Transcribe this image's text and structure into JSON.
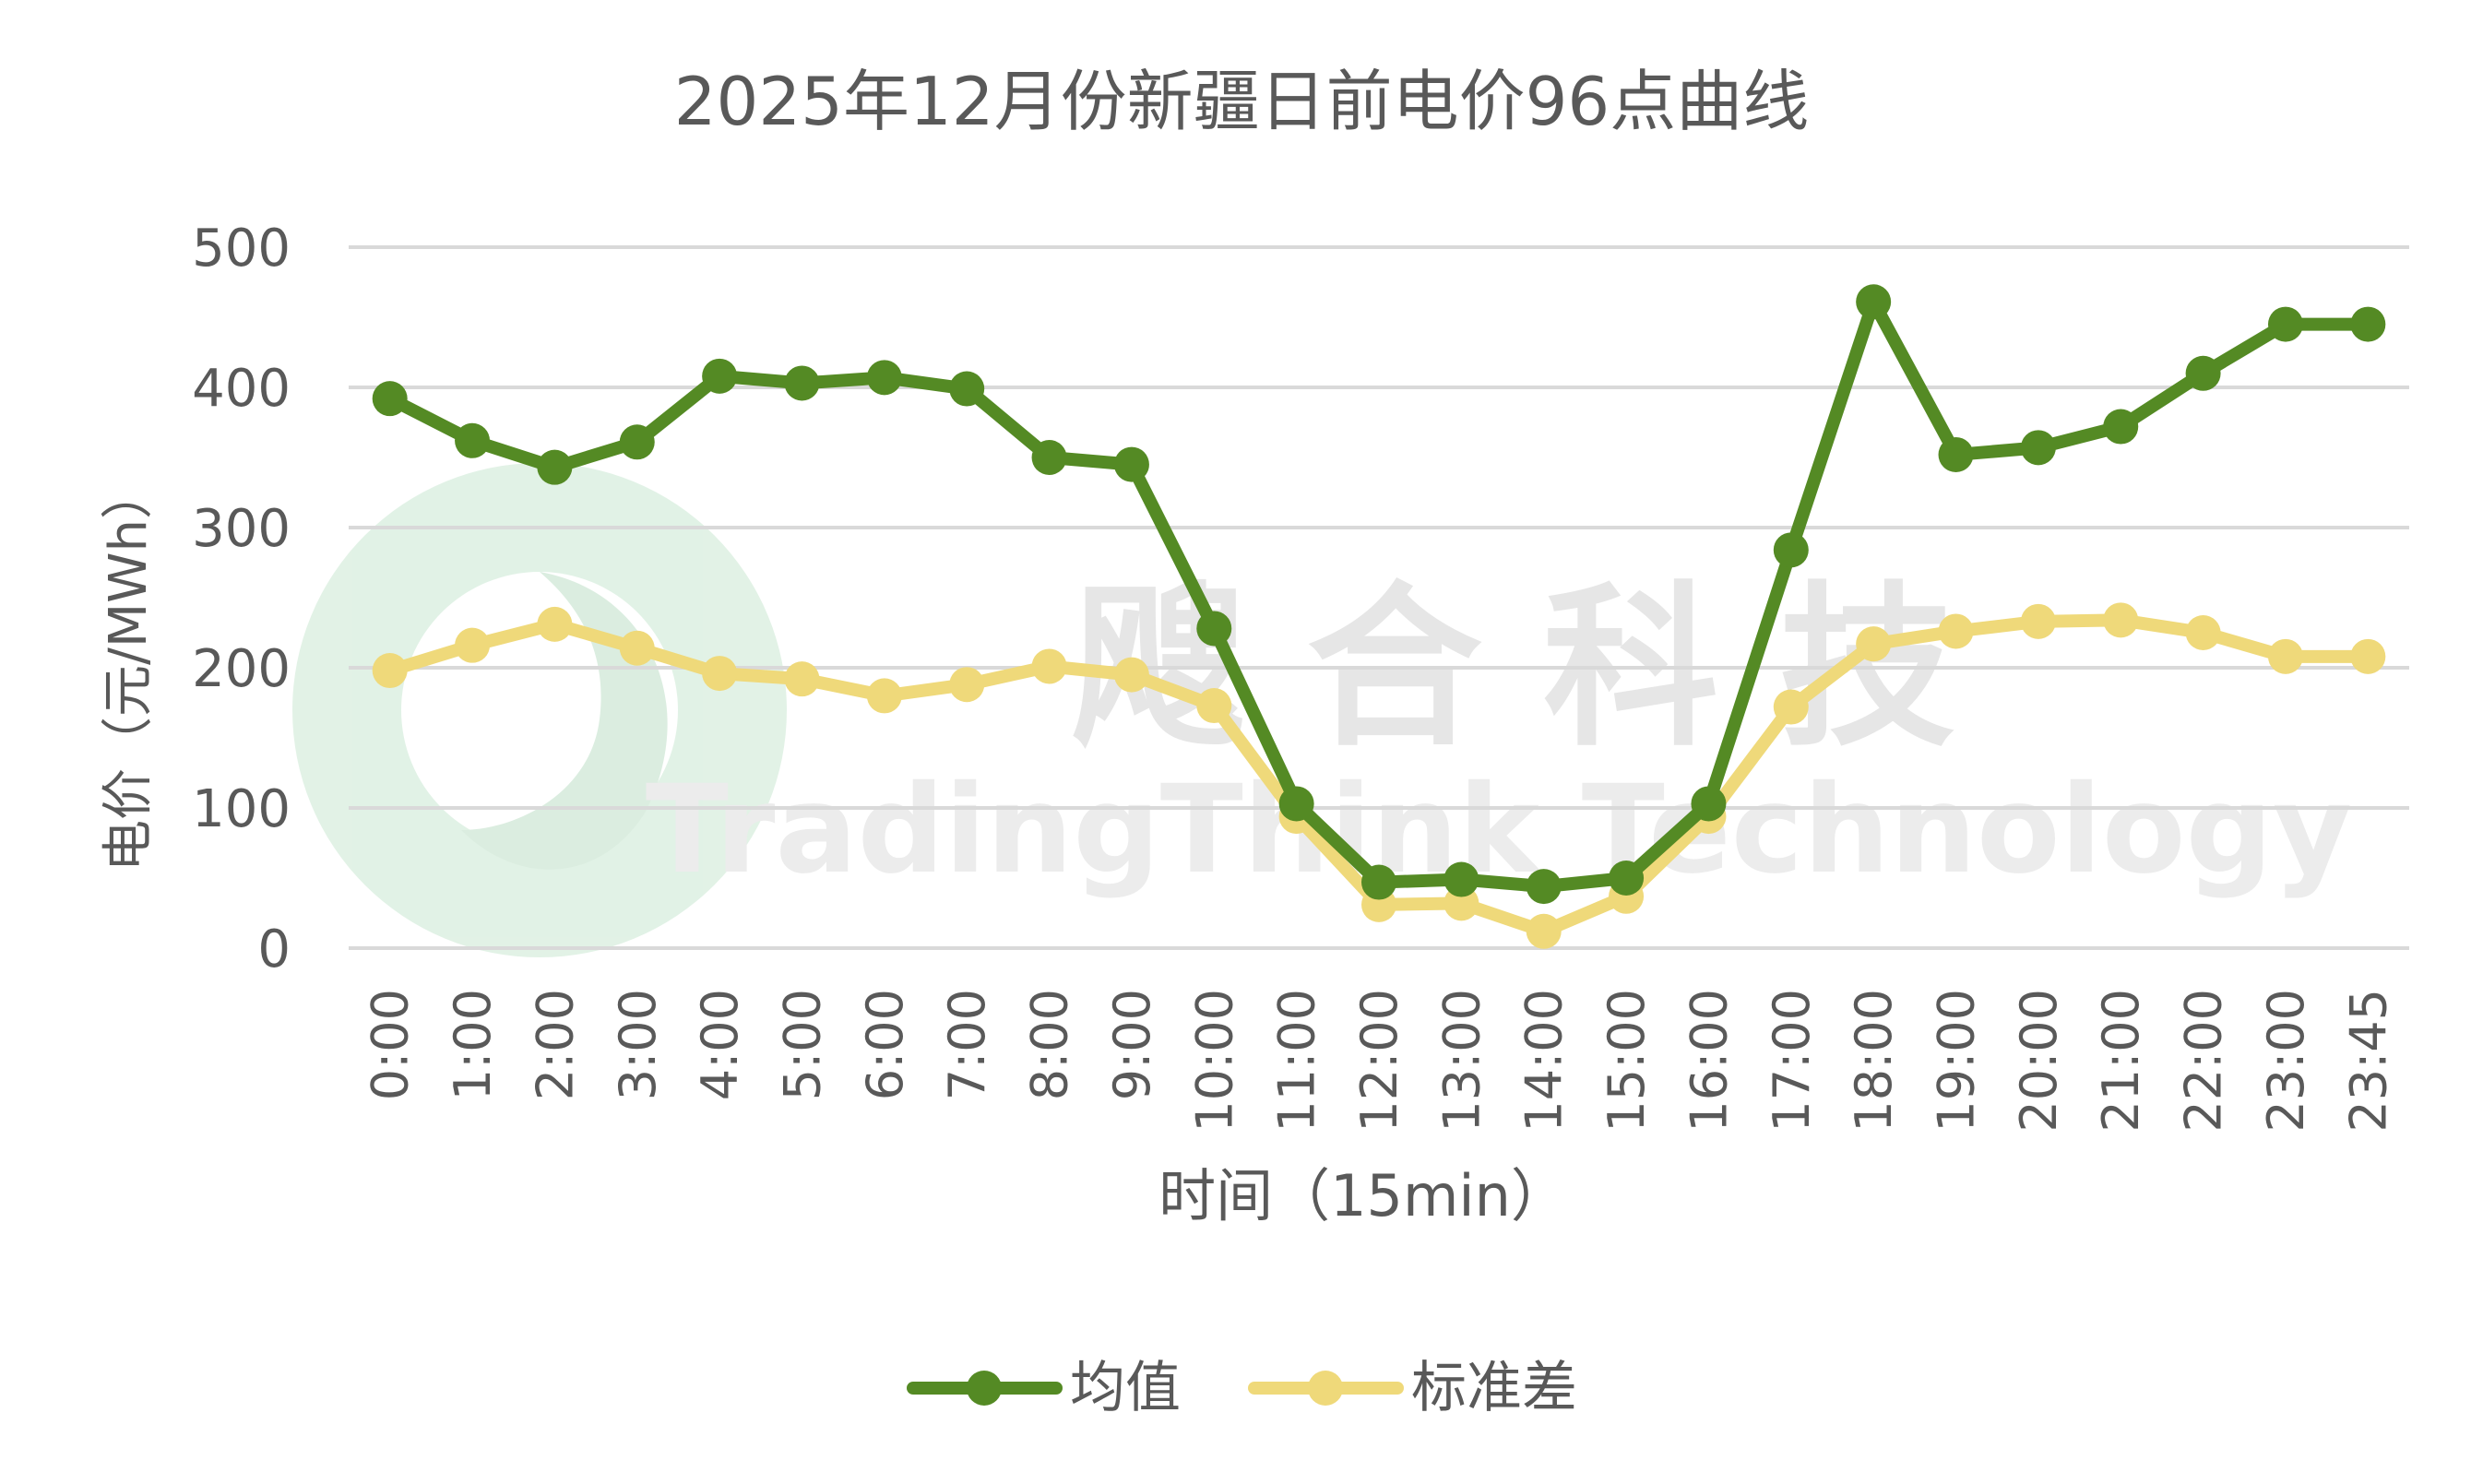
{
  "colors": {
    "mean": "#548a24",
    "std": "#efd97a",
    "grid": "#d9d9d9",
    "text": "#595959",
    "watermark": "#e6e6e6",
    "watermark_logo": "#d8eede"
  },
  "watermark": {
    "cn": "飕 合 科 技",
    "en": "TradingThink Technology"
  },
  "chart_data": {
    "type": "line",
    "title": "2025年12月份新疆日前电价96点曲线",
    "xlabel": "时间（15min）",
    "ylabel": "电价（元/MWh）",
    "ylim": [
      0,
      500
    ],
    "yticks": [
      0,
      100,
      200,
      300,
      400,
      500
    ],
    "grid": true,
    "legend_position": "bottom",
    "categories": [
      "0:00",
      "1:00",
      "2:00",
      "3:00",
      "4:00",
      "5:00",
      "6:00",
      "7:00",
      "8:00",
      "9:00",
      "10:00",
      "11:00",
      "12:00",
      "13:00",
      "14:00",
      "15:00",
      "16:00",
      "17:00",
      "18:00",
      "19:00",
      "20:00",
      "21:00",
      "22:00",
      "23:00",
      "23:45"
    ],
    "series": [
      {
        "name": "均值",
        "color_key": "mean",
        "values": [
          392,
          362,
          343,
          361,
          408,
          403,
          407,
          399,
          350,
          345,
          228,
          103,
          47,
          49,
          44,
          50,
          103,
          284,
          461,
          352,
          357,
          372,
          410,
          445,
          445
        ]
      },
      {
        "name": "标准差",
        "color_key": "std",
        "values": [
          198,
          216,
          231,
          214,
          196,
          192,
          180,
          188,
          201,
          195,
          173,
          94,
          31,
          32,
          12,
          37,
          94,
          172,
          217,
          226,
          233,
          234,
          225,
          208,
          208
        ]
      }
    ]
  }
}
